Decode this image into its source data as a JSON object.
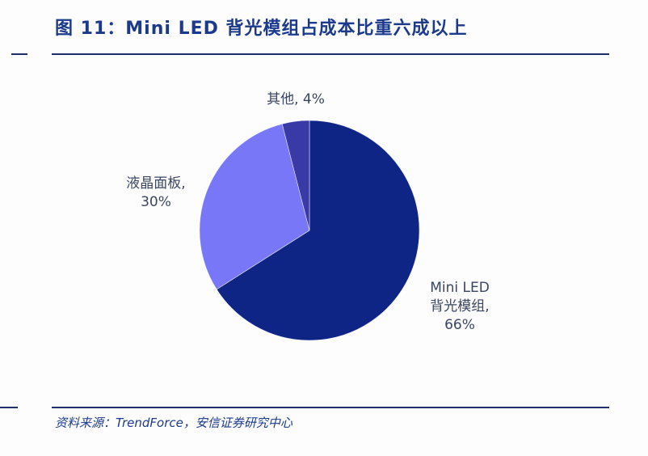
{
  "header": {
    "title": "图 11：Mini LED 背光模组占成本比重六成以上"
  },
  "footer": {
    "source": "资料来源：TrendForce，安信证券研究中心"
  },
  "labels": {
    "other": "其他, 4%",
    "lcd_line1": "液晶面板,",
    "lcd_line2": "30%",
    "mini_line1": "Mini LED",
    "mini_line2": "背光模组,",
    "mini_line3": "66%"
  },
  "colors": {
    "mini_led": "#0f2585",
    "lcd_panel": "#7777f7",
    "other": "#3a3aa6",
    "title": "#1b3a8c",
    "rule": "#1b2f6b"
  },
  "chart_data": {
    "type": "pie",
    "title": "图 11：Mini LED 背光模组占成本比重六成以上",
    "categories": [
      "Mini LED 背光模组",
      "液晶面板",
      "其他"
    ],
    "values": [
      66,
      30,
      4
    ],
    "unit": "%",
    "start_angle_deg": 0,
    "direction": "clockwise",
    "legend": "none (data labels)",
    "source": "资料来源：TrendForce，安信证券研究中心"
  }
}
